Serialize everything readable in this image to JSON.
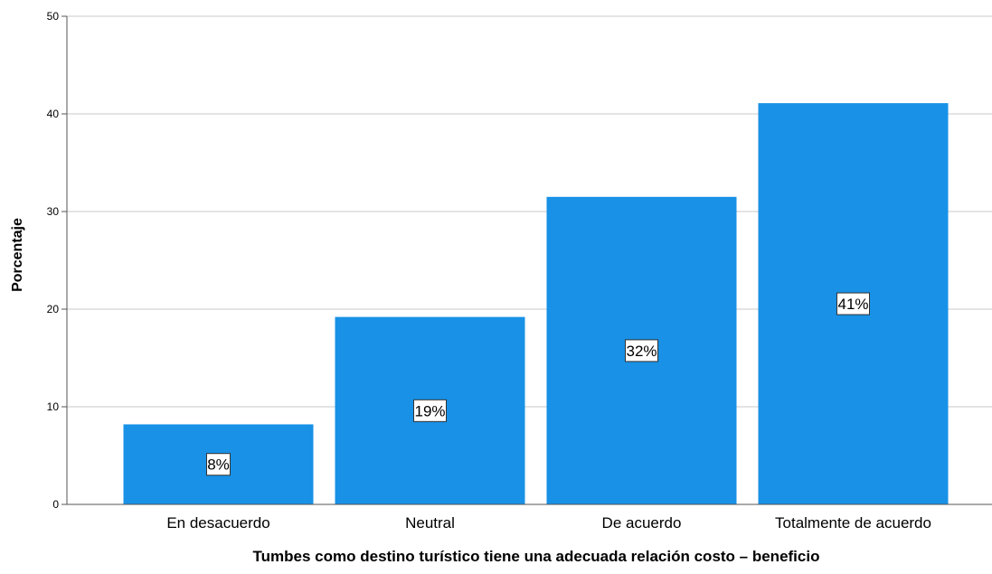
{
  "chart_data": {
    "type": "bar",
    "categories": [
      "En desacuerdo",
      "Neutral",
      "De acuerdo",
      "Totalmente de acuerdo"
    ],
    "values": [
      8.2,
      19.2,
      31.5,
      41.1
    ],
    "data_labels": [
      "8%",
      "19%",
      "32%",
      "41%"
    ],
    "title": "",
    "xlabel": "Tumbes como destino turístico tiene una adecuada relación costo – beneficio",
    "ylabel": "Porcentaje",
    "ylim": [
      0,
      50
    ],
    "yticks": [
      0,
      10,
      20,
      30,
      40,
      50
    ],
    "grid": "horizontal",
    "colors": {
      "bar": "#1891e6",
      "grid": "#c8c8c8",
      "axis": "#555555",
      "text": "#000000",
      "label_bg": "#ffffff"
    }
  }
}
